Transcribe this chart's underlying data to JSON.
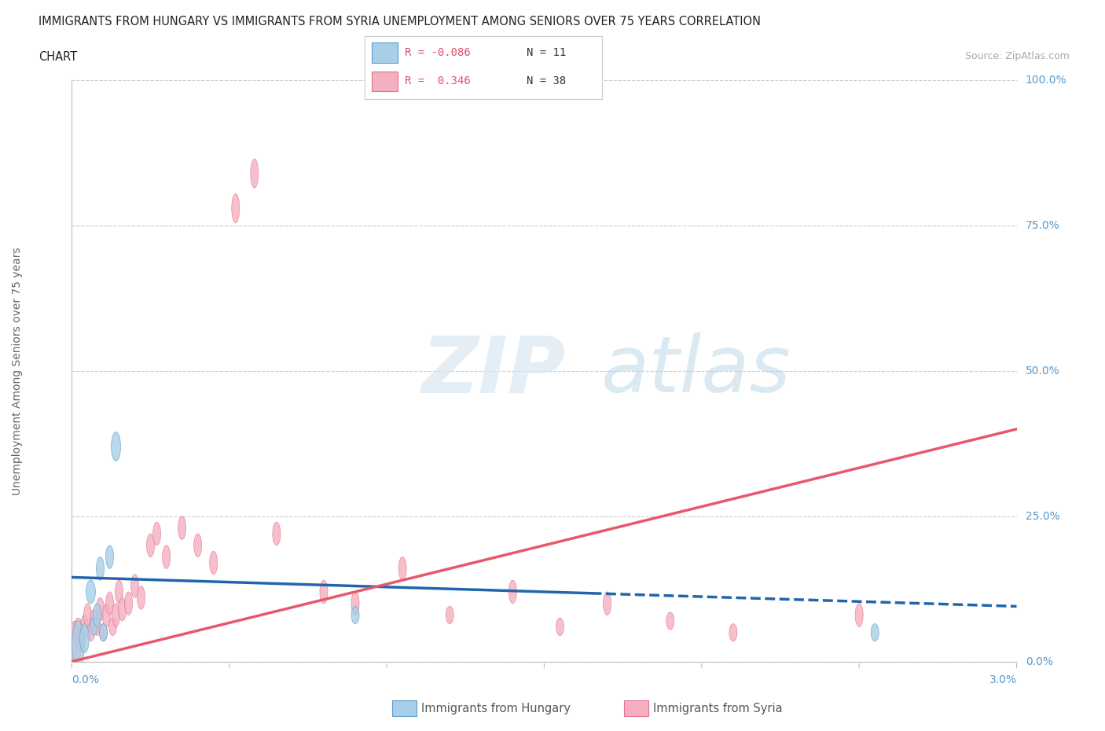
{
  "title_line1": "IMMIGRANTS FROM HUNGARY VS IMMIGRANTS FROM SYRIA UNEMPLOYMENT AMONG SENIORS OVER 75 YEARS CORRELATION",
  "title_line2": "CHART",
  "source": "Source: ZipAtlas.com",
  "ylabel": "Unemployment Among Seniors over 75 years",
  "ytick_labels": [
    "0.0%",
    "25.0%",
    "50.0%",
    "75.0%",
    "100.0%"
  ],
  "ytick_values": [
    0,
    25,
    50,
    75,
    100
  ],
  "xlim": [
    0.0,
    3.0
  ],
  "ylim": [
    0,
    100
  ],
  "legend_hungary_r": "R = -0.086",
  "legend_hungary_n": "N = 11",
  "legend_syria_r": "R =  0.346",
  "legend_syria_n": "N = 38",
  "hungary_color": "#a8cfe8",
  "syria_color": "#f4b0c0",
  "hungary_edge_color": "#5b9ec9",
  "syria_edge_color": "#e87090",
  "hungary_line_color": "#2166ac",
  "syria_line_color": "#e8576a",
  "watermark_zip": "ZIP",
  "watermark_atlas": "atlas",
  "hungary_x": [
    0.02,
    0.04,
    0.06,
    0.07,
    0.08,
    0.09,
    0.1,
    0.12,
    0.14,
    0.9,
    2.55
  ],
  "hungary_y": [
    3,
    4,
    12,
    6,
    8,
    16,
    5,
    18,
    37,
    8,
    5
  ],
  "hungary_ew": [
    0.04,
    0.03,
    0.03,
    0.025,
    0.025,
    0.025,
    0.025,
    0.025,
    0.03,
    0.025,
    0.025
  ],
  "hungary_eh": [
    8,
    5,
    4,
    3,
    4,
    4,
    3,
    4,
    5,
    3,
    3
  ],
  "syria_x": [
    0.01,
    0.02,
    0.03,
    0.04,
    0.05,
    0.06,
    0.07,
    0.08,
    0.09,
    0.1,
    0.11,
    0.12,
    0.13,
    0.14,
    0.15,
    0.16,
    0.18,
    0.2,
    0.22,
    0.25,
    0.27,
    0.3,
    0.35,
    0.4,
    0.45,
    0.52,
    0.58,
    0.65,
    0.8,
    0.9,
    1.05,
    1.2,
    1.4,
    1.55,
    1.7,
    1.9,
    2.1,
    2.5
  ],
  "syria_y": [
    3,
    5,
    4,
    6,
    8,
    5,
    7,
    6,
    9,
    5,
    8,
    10,
    6,
    8,
    12,
    9,
    10,
    13,
    11,
    20,
    22,
    18,
    23,
    20,
    17,
    78,
    84,
    22,
    12,
    10,
    16,
    8,
    12,
    6,
    10,
    7,
    5,
    8
  ],
  "syria_ew": [
    0.04,
    0.03,
    0.025,
    0.025,
    0.025,
    0.025,
    0.025,
    0.025,
    0.025,
    0.025,
    0.025,
    0.025,
    0.025,
    0.025,
    0.025,
    0.025,
    0.025,
    0.025,
    0.025,
    0.025,
    0.025,
    0.025,
    0.025,
    0.025,
    0.025,
    0.025,
    0.025,
    0.025,
    0.025,
    0.025,
    0.025,
    0.025,
    0.025,
    0.025,
    0.025,
    0.025,
    0.025,
    0.025
  ],
  "syria_eh": [
    8,
    5,
    4,
    4,
    4,
    3,
    4,
    3,
    4,
    3,
    4,
    4,
    3,
    4,
    4,
    4,
    4,
    4,
    4,
    4,
    4,
    4,
    4,
    4,
    4,
    5,
    5,
    4,
    4,
    4,
    4,
    3,
    4,
    3,
    4,
    3,
    3,
    4
  ],
  "hungary_line_x0": 0.0,
  "hungary_line_y0": 14.5,
  "hungary_line_x1": 3.0,
  "hungary_line_y1": 9.5,
  "hungary_solid_end": 1.65,
  "syria_line_x0": 0.0,
  "syria_line_y0": 0.0,
  "syria_line_x1": 3.0,
  "syria_line_y1": 40.0,
  "background_color": "#ffffff",
  "grid_color": "#cccccc",
  "title_color": "#222222",
  "axis_label_color": "#5599cc"
}
